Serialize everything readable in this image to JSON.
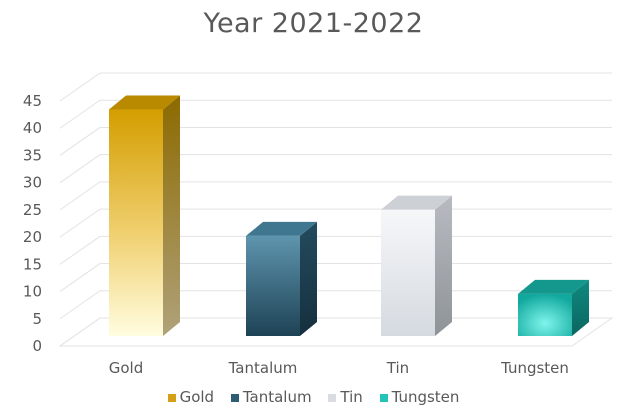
{
  "chart_data": {
    "type": "bar",
    "title": "Year 2021-2022",
    "categories": [
      "Gold",
      "Tantalum",
      "Tin",
      "Tungsten"
    ],
    "values": [
      43,
      19,
      24,
      8
    ],
    "ylim": [
      0,
      45
    ],
    "yticks": [
      0,
      5,
      10,
      15,
      20,
      25,
      30,
      35,
      40,
      45
    ],
    "grid": true,
    "legend_position": "bottom",
    "colors": [
      "#D4A017",
      "#2E5C73",
      "#E6EAF0",
      "#20C4B8"
    ]
  },
  "legend": [
    {
      "label": "Gold",
      "color": "#D4A017"
    },
    {
      "label": "Tantalum",
      "color": "#2E5C73"
    },
    {
      "label": "Tin",
      "color": "#D9DDE2"
    },
    {
      "label": "Tungsten",
      "color": "#20C4B8"
    }
  ]
}
